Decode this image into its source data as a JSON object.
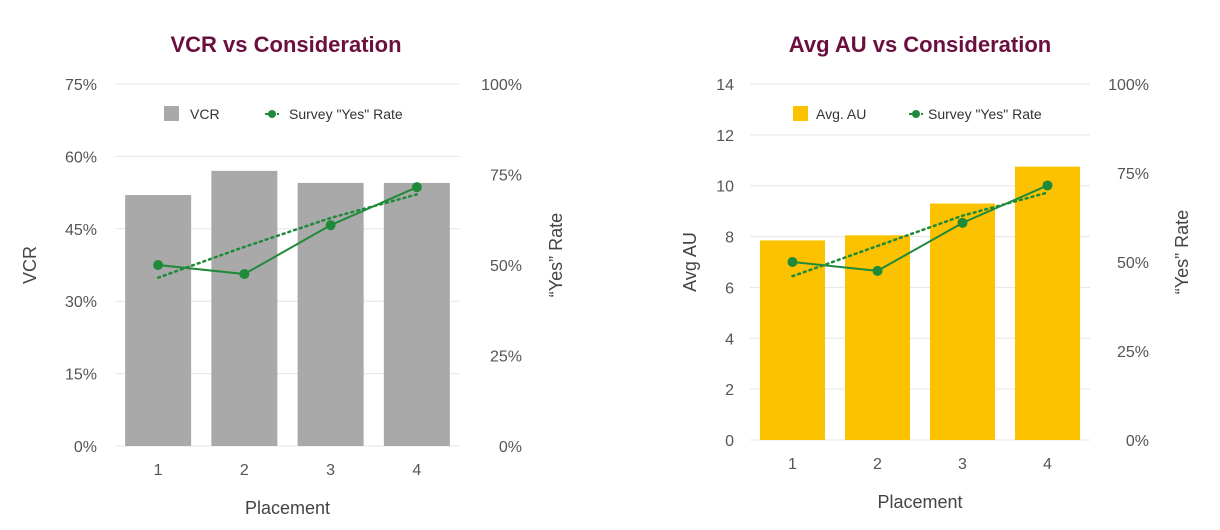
{
  "colors": {
    "title": "#6b0f3f",
    "vcr_bar": "#a9a9a9",
    "au_bar": "#fcc200",
    "line": "#1f8a3a",
    "grid": "#e6e6e6"
  },
  "chart_data": [
    {
      "type": "bar",
      "title": "VCR vs Consideration",
      "categories": [
        "1",
        "2",
        "3",
        "4"
      ],
      "xlabel": "Placement",
      "ylabel": "VCR",
      "y2label": "“Yes” Rate",
      "ylim": [
        0,
        75
      ],
      "yticks": [
        "0%",
        "15%",
        "30%",
        "45%",
        "60%",
        "75%"
      ],
      "ytick_values": [
        0,
        15,
        30,
        45,
        60,
        75
      ],
      "y2lim": [
        0,
        100
      ],
      "y2ticks": [
        "0%",
        "25%",
        "50%",
        "75%",
        "100%"
      ],
      "y2tick_values": [
        0,
        25,
        50,
        75,
        100
      ],
      "grid": true,
      "legend_position": "top",
      "series": [
        {
          "name": "VCR",
          "type": "bar",
          "axis": "left",
          "values": [
            52,
            57,
            54.5,
            54.5
          ]
        },
        {
          "name": "Survey \"Yes\" Rate",
          "type": "line",
          "axis": "right",
          "values": [
            50,
            47.5,
            61,
            71.5
          ],
          "trendline": [
            46.5,
            55,
            63,
            69.5
          ]
        }
      ]
    },
    {
      "type": "bar",
      "title": "Avg AU vs Consideration",
      "categories": [
        "1",
        "2",
        "3",
        "4"
      ],
      "xlabel": "Placement",
      "ylabel": "Avg AU",
      "y2label": "“Yes” Rate",
      "ylim": [
        0,
        14
      ],
      "yticks": [
        "0",
        "2",
        "4",
        "6",
        "8",
        "10",
        "12",
        "14"
      ],
      "ytick_values": [
        0,
        2,
        4,
        6,
        8,
        10,
        12,
        14
      ],
      "y2lim": [
        0,
        100
      ],
      "y2ticks": [
        "0%",
        "25%",
        "50%",
        "75%",
        "100%"
      ],
      "y2tick_values": [
        0,
        25,
        50,
        75,
        100
      ],
      "grid": true,
      "legend_position": "top",
      "series": [
        {
          "name": "Avg. AU",
          "type": "bar",
          "axis": "left",
          "values": [
            7.85,
            8.05,
            9.3,
            10.75
          ]
        },
        {
          "name": "Survey \"Yes\" Rate",
          "type": "line",
          "axis": "right",
          "values": [
            50,
            47.5,
            61,
            71.5
          ],
          "trendline": [
            46,
            54.5,
            63,
            69.5
          ]
        }
      ]
    }
  ]
}
